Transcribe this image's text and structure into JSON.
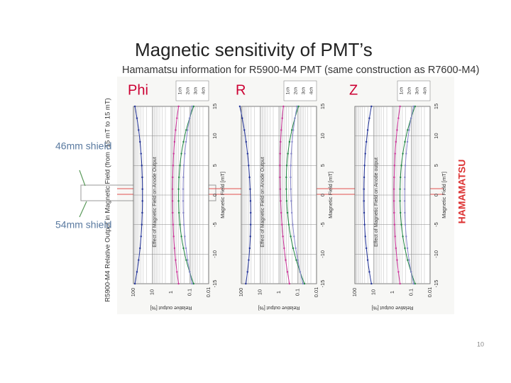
{
  "title": "Magnetic sensitivity of PMT’s",
  "subtitle": "Hamamatsu information for R5900-M4 PMT (same construction as R7600-M4)",
  "side_label": "R5900-M4 Relative Output in Magnetic Field (from -15 mT to 15 mT)",
  "panels": [
    {
      "label": "Phi",
      "legend": [
        "1ch",
        "2ch",
        "3ch",
        "4ch"
      ],
      "caption": "Effect of Magnetic Field on Anode Output",
      "x_axis_title": "Relative output [%]",
      "y_axis_title": "Magnetic Field [mT]"
    },
    {
      "label": "R",
      "legend": [
        "1ch",
        "2ch",
        "3ch",
        "4ch"
      ],
      "caption": "Effect of Magnetic Field on Anode Output",
      "x_axis_title": "Relative output [%]",
      "y_axis_title": "Magnetic Field [mT]"
    },
    {
      "label": "Z",
      "legend": [
        "1ch",
        "2ch",
        "3ch",
        "4ch"
      ],
      "caption": "Effect of Magnetic Field on Anode output",
      "x_axis_title": "Relative output [%]",
      "y_axis_title": "Magnetic Field [mT]"
    }
  ],
  "x_ticks": [
    "100",
    "10",
    "1",
    "0.1",
    "0.01"
  ],
  "y_ticks": [
    "15",
    "10",
    "5",
    "0",
    "-5",
    "-10",
    "-15"
  ],
  "annotations": [
    "46mm shield",
    "54mm shield"
  ],
  "logo": "HAMAMATSU",
  "page_number": "10"
}
